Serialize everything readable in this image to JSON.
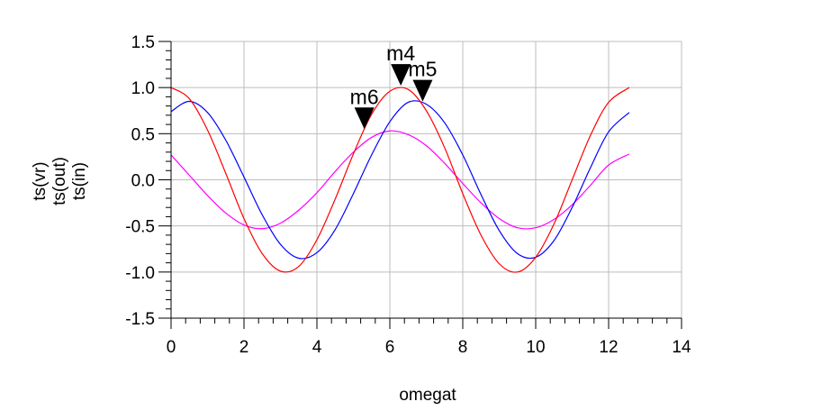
{
  "chart_data": {
    "type": "line",
    "xlabel": "omegat",
    "ylabels": [
      "ts(vr)",
      "ts(out)",
      "ts(in)"
    ],
    "xlim": [
      0,
      14
    ],
    "ylim": [
      -1.5,
      1.5
    ],
    "xticks": [
      0,
      2,
      4,
      6,
      8,
      10,
      12,
      14
    ],
    "yticks": [
      1.5,
      1.0,
      0.5,
      0.0,
      -0.5,
      -1.0,
      -1.5
    ],
    "xtick_labels": [
      "0",
      "2",
      "4",
      "6",
      "8",
      "10",
      "12",
      "14"
    ],
    "ytick_labels": [
      "1.5",
      "1.0",
      "0.5",
      "0.0",
      "-0.5",
      "-1.0",
      "-1.5"
    ],
    "grid": true,
    "x": [
      0,
      0.5,
      1,
      1.5,
      2,
      2.5,
      3,
      3.5,
      4,
      4.5,
      5,
      5.5,
      6,
      6.5,
      7,
      7.5,
      8,
      8.5,
      9,
      9.5,
      10,
      10.5,
      11,
      11.5,
      12,
      12.566
    ],
    "series": [
      {
        "name": "ts(vr)",
        "color": "#ff00ff",
        "values": [
          0.27,
          0.05,
          -0.17,
          -0.36,
          -0.49,
          -0.53,
          -0.47,
          -0.33,
          -0.14,
          0.09,
          0.3,
          0.46,
          0.53,
          0.49,
          0.37,
          0.18,
          -0.04,
          -0.25,
          -0.42,
          -0.52,
          -0.52,
          -0.43,
          -0.27,
          -0.06,
          0.16,
          0.28
        ]
      },
      {
        "name": "ts(out)",
        "color": "#0000ff",
        "values": [
          0.74,
          0.85,
          0.73,
          0.43,
          0.03,
          -0.38,
          -0.7,
          -0.85,
          -0.79,
          -0.54,
          -0.15,
          0.27,
          0.63,
          0.84,
          0.82,
          0.62,
          0.27,
          -0.16,
          -0.55,
          -0.8,
          -0.84,
          -0.66,
          -0.3,
          0.13,
          0.52,
          0.73
        ]
      },
      {
        "name": "ts(in)",
        "color": "#ff0000",
        "values": [
          1.0,
          0.88,
          0.54,
          0.07,
          -0.42,
          -0.8,
          -0.99,
          -0.94,
          -0.65,
          -0.21,
          0.28,
          0.71,
          0.96,
          0.98,
          0.75,
          0.35,
          -0.15,
          -0.6,
          -0.91,
          -1.0,
          -0.84,
          -0.48,
          0.0,
          0.48,
          0.84,
          1.0
        ]
      }
    ],
    "markers": [
      {
        "label": "m4",
        "x": 6.3,
        "y": 1.0
      },
      {
        "label": "m5",
        "x": 6.9,
        "y": 0.83
      },
      {
        "label": "m6",
        "x": 5.3,
        "y": 0.53
      }
    ]
  }
}
